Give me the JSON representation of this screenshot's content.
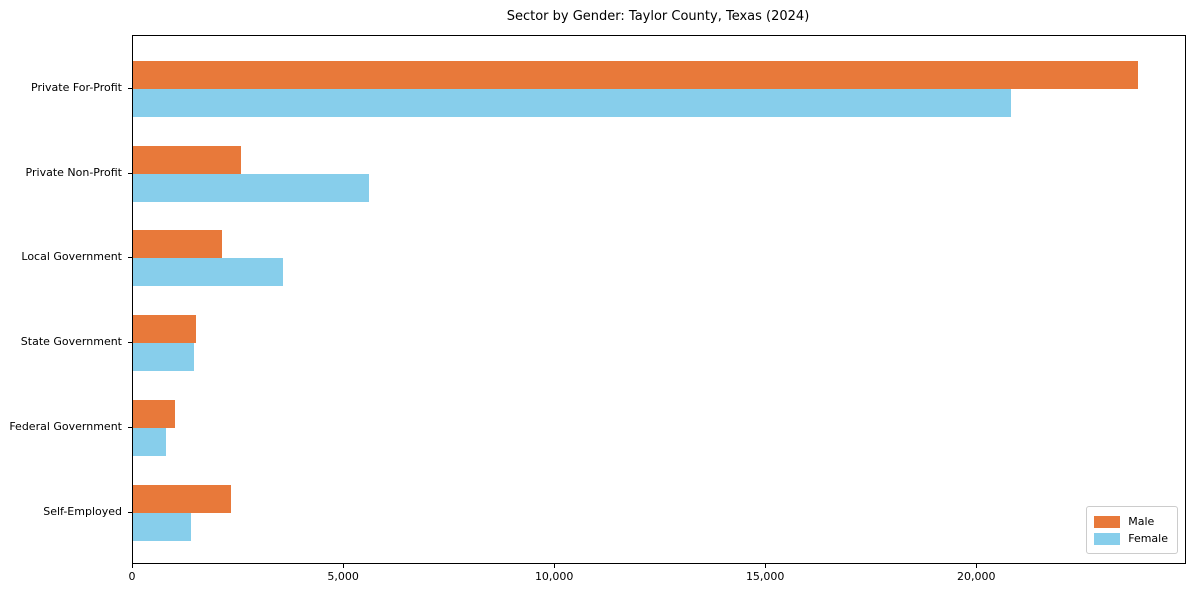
{
  "chart_data": {
    "type": "bar",
    "orientation": "horizontal",
    "title": "Sector by Gender: Taylor County, Texas (2024)",
    "categories": [
      "Private For-Profit",
      "Private Non-Profit",
      "Local Government",
      "State Government",
      "Federal Government",
      "Self-Employed"
    ],
    "series": [
      {
        "name": "Male",
        "color": "#e8793a",
        "values": [
          23800,
          2550,
          2100,
          1500,
          1000,
          2320
        ]
      },
      {
        "name": "Female",
        "color": "#87ceeb",
        "values": [
          20800,
          5600,
          3550,
          1450,
          780,
          1380
        ]
      }
    ],
    "xlabel": "",
    "ylabel": "",
    "xlim": [
      0,
      24920
    ],
    "xticks": [
      0,
      5000,
      10000,
      15000,
      20000
    ],
    "xtick_labels": [
      "0",
      "5,000",
      "10,000",
      "15,000",
      "20,000"
    ],
    "grid": false,
    "legend": {
      "position": "lower right",
      "entries": [
        "Male",
        "Female"
      ]
    }
  },
  "colors": {
    "male": "#e8793a",
    "female": "#87ceeb",
    "spine": "#000000",
    "legend_border": "#cccccc",
    "background": "#ffffff"
  }
}
